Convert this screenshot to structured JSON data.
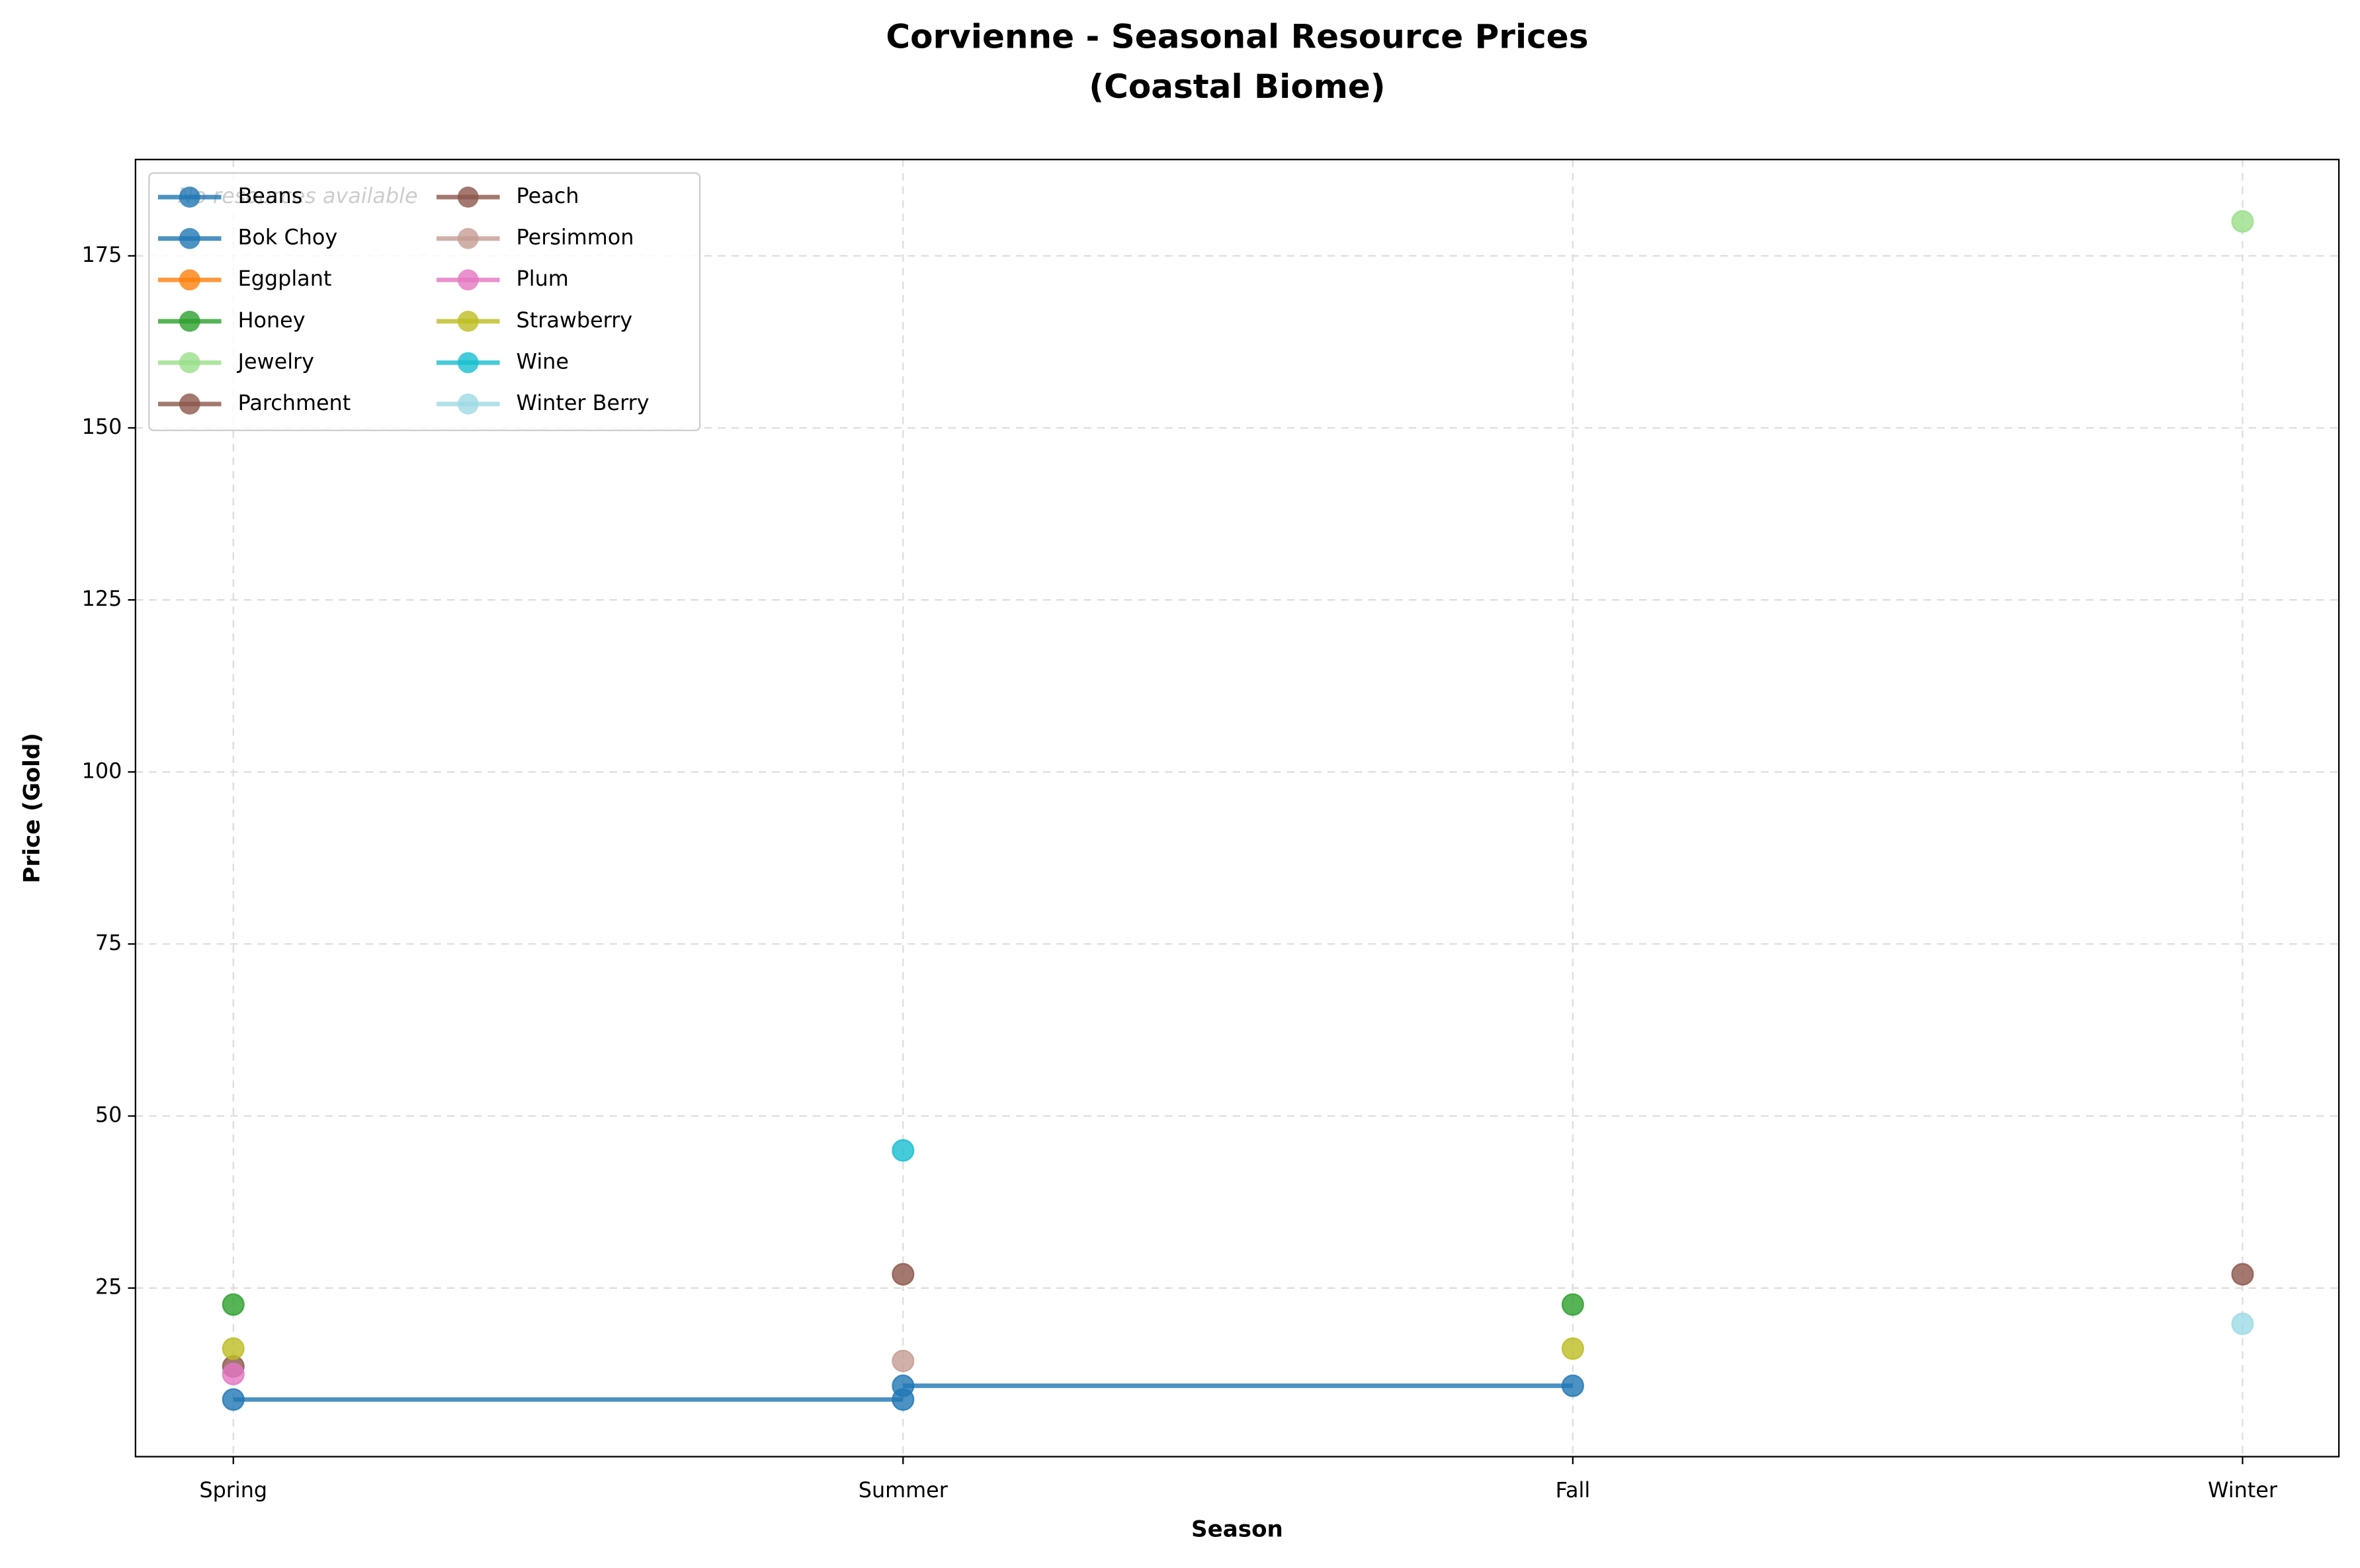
{
  "chart_data": {
    "type": "line",
    "title": [
      "Corvienne - Seasonal Resource Prices",
      "(Coastal Biome)"
    ],
    "x_label": "Season",
    "y_label": "Price (Gold)",
    "annotation": "No resources available",
    "categories": [
      "Spring",
      "Summer",
      "Fall",
      "Winter"
    ],
    "ylim": [
      0.5,
      189
    ],
    "yticks": [
      25,
      50,
      75,
      100,
      125,
      150,
      175
    ],
    "grid": true,
    "legend_position": "upper left",
    "series": [
      {
        "name": "Beans",
        "color": "#1f77b4",
        "values": [
          8.8,
          8.8,
          null,
          null
        ]
      },
      {
        "name": "Bok Choy",
        "color": "#1f77b4",
        "values": [
          null,
          10.8,
          10.8,
          null
        ]
      },
      {
        "name": "Eggplant",
        "color": "#ff7f0e",
        "values": [
          null,
          null,
          null,
          null
        ]
      },
      {
        "name": "Honey",
        "color": "#2ca02c",
        "values": [
          22.6,
          null,
          22.6,
          null
        ]
      },
      {
        "name": "Jewelry",
        "color": "#98df8a",
        "values": [
          null,
          null,
          null,
          180
        ]
      },
      {
        "name": "Parchment",
        "color": "#8c564b",
        "values": [
          13.6,
          null,
          null,
          null
        ]
      },
      {
        "name": "Peach",
        "color": "#8c564b",
        "values": [
          null,
          27,
          null,
          27
        ]
      },
      {
        "name": "Persimmon",
        "color": "#c49c94",
        "values": [
          null,
          14.4,
          null,
          null
        ]
      },
      {
        "name": "Plum",
        "color": "#e377c2",
        "values": [
          12.5,
          null,
          null,
          null
        ]
      },
      {
        "name": "Strawberry",
        "color": "#bcbd22",
        "values": [
          16.2,
          null,
          16.2,
          null
        ]
      },
      {
        "name": "Wine",
        "color": "#17becf",
        "values": [
          null,
          45,
          null,
          null
        ]
      },
      {
        "name": "Winter Berry",
        "color": "#9edae5",
        "values": [
          null,
          null,
          null,
          19.8
        ]
      }
    ]
  }
}
